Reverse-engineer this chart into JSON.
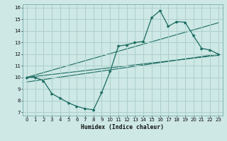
{
  "bg_color": "#cde8e5",
  "grid_color": "#aecfcc",
  "line_color": "#1a6b60",
  "xlabel": "Humidex (Indice chaleur)",
  "xlim": [
    -0.5,
    23.5
  ],
  "ylim": [
    6.7,
    16.3
  ],
  "xticks": [
    0,
    1,
    2,
    3,
    4,
    5,
    6,
    7,
    8,
    9,
    10,
    11,
    12,
    13,
    14,
    15,
    16,
    17,
    18,
    19,
    20,
    21,
    22,
    23
  ],
  "yticks": [
    7,
    8,
    9,
    10,
    11,
    12,
    13,
    14,
    15,
    16
  ],
  "series1_x": [
    0,
    1,
    2,
    3,
    4,
    5,
    6,
    7,
    8,
    9,
    10,
    11,
    12,
    13,
    14,
    15,
    16,
    17,
    18,
    19,
    20,
    21,
    22,
    23
  ],
  "series1_y": [
    10.0,
    10.0,
    9.7,
    8.6,
    8.2,
    7.8,
    7.5,
    7.3,
    7.2,
    8.7,
    10.5,
    12.7,
    12.8,
    13.0,
    13.1,
    15.15,
    15.75,
    14.4,
    14.8,
    14.75,
    13.6,
    12.5,
    12.35,
    12.0
  ],
  "line1_x": [
    0,
    23
  ],
  "line1_y": [
    10.0,
    11.9
  ],
  "line2_x": [
    0,
    23
  ],
  "line2_y": [
    10.0,
    14.7
  ],
  "line3_x": [
    0,
    23
  ],
  "line3_y": [
    9.6,
    12.0
  ]
}
